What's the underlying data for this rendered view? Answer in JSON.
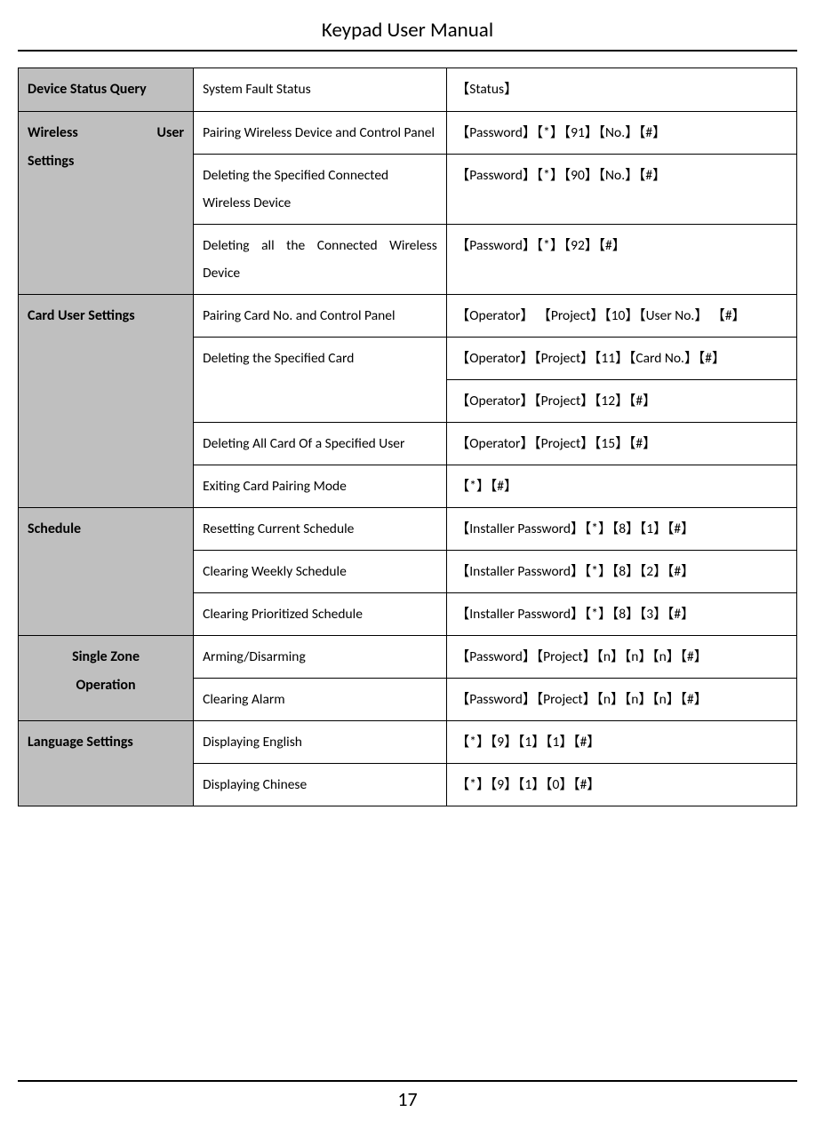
{
  "header": "Keypad User Manual",
  "page_number": "17",
  "columns": [
    "category",
    "description",
    "command"
  ],
  "column_widths": [
    "22.5%",
    "32.5%",
    "45%"
  ],
  "colors": {
    "category_bg": "#bfbfbf",
    "border": "#000000",
    "background": "#ffffff",
    "text": "#000000"
  },
  "fonts": {
    "header_size": 23,
    "cell_size": 15.5,
    "category_weight": "bold",
    "footer_size": 22
  },
  "rows": {
    "device_status_query": {
      "label": "Device Status Query",
      "items": [
        {
          "desc": "System Fault Status",
          "cmd": "【Status】"
        }
      ]
    },
    "wireless_user_settings": {
      "label_left": "Wireless",
      "label_right": "User",
      "label_line2": "Settings",
      "items": [
        {
          "desc": "Pairing Wireless Device and Control Panel",
          "cmd": "【Password】【*】【91】【No.】【#】"
        },
        {
          "desc": "Deleting the Specified Connected Wireless Device",
          "cmd": "【Password】【*】【90】【No.】【#】"
        },
        {
          "desc": "Deleting all the Connected Wireless Device",
          "cmd": "【Password】【*】【92】【#】"
        }
      ]
    },
    "card_user_settings": {
      "label": "Card User Settings",
      "items": [
        {
          "desc": "Pairing Card No. and Control Panel",
          "cmd": "【Operator】 【Project】【10】【User No.】 【#】"
        },
        {
          "desc": "Deleting the Specified Card",
          "cmd": "【Operator】【Project】【11】【Card No.】【#】",
          "rowspan": 2
        },
        {
          "cmd": "【Operator】【Project】【12】【#】"
        },
        {
          "desc": "Deleting All Card Of a Specified User",
          "cmd": "【Operator】【Project】【15】【#】"
        },
        {
          "desc": "Exiting Card Pairing Mode",
          "cmd": "【*】【#】"
        }
      ]
    },
    "schedule": {
      "label": "Schedule",
      "items": [
        {
          "desc": "Resetting Current Schedule",
          "cmd": "【Installer Password】【*】【8】【1】【#】"
        },
        {
          "desc": "Clearing Weekly Schedule",
          "cmd": "【Installer Password】【*】【8】【2】【#】"
        },
        {
          "desc": "Clearing Prioritized Schedule",
          "cmd": "【Installer Password】【*】【8】【3】【#】"
        }
      ]
    },
    "single_zone_operation": {
      "label_line1": "Single Zone",
      "label_line2": "Operation",
      "centered": true,
      "items": [
        {
          "desc": "Arming/Disarming",
          "cmd": "【Password】【Project】【n】【n】【n】【#】"
        },
        {
          "desc": "Clearing Alarm",
          "cmd": "【Password】【Project】【n】【n】【n】【#】"
        }
      ]
    },
    "language_settings": {
      "label": "Language Settings",
      "items": [
        {
          "desc": "Displaying English",
          "cmd": "【*】【9】【1】【1】【#】"
        },
        {
          "desc": "Displaying Chinese",
          "cmd": "【*】【9】【1】【0】【#】"
        }
      ]
    }
  }
}
